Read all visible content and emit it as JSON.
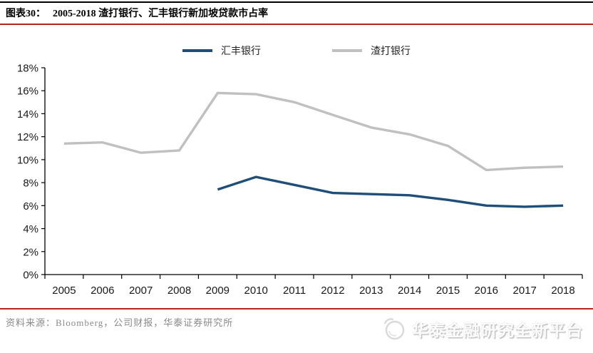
{
  "header": {
    "figure_label": "图表30：",
    "figure_title": "2005-2018 渣打银行、汇丰银行新加坡贷款市占率"
  },
  "legend": {
    "items": [
      {
        "label": "汇丰银行",
        "color": "#1F4E79"
      },
      {
        "label": "渣打银行",
        "color": "#C0C0C0"
      }
    ]
  },
  "chart_data": {
    "type": "line",
    "title": "2005-2018 渣打银行、汇丰银行新加坡贷款市占率",
    "categories": [
      "2005",
      "2006",
      "2007",
      "2008",
      "2009",
      "2010",
      "2011",
      "2012",
      "2013",
      "2014",
      "2015",
      "2016",
      "2017",
      "2018"
    ],
    "series": [
      {
        "name": "渣打银行",
        "color": "#C0C0C0",
        "values": [
          11.4,
          11.5,
          10.6,
          10.8,
          15.8,
          15.7,
          15.0,
          13.9,
          12.8,
          12.2,
          11.2,
          9.1,
          9.3,
          9.4
        ]
      },
      {
        "name": "汇丰银行",
        "color": "#1F4E79",
        "values": [
          null,
          null,
          null,
          null,
          7.4,
          8.5,
          7.8,
          7.1,
          7.0,
          6.9,
          6.5,
          6.0,
          5.9,
          6.0
        ]
      }
    ],
    "xlabel": "",
    "ylabel": "",
    "ylim": [
      0,
      18
    ],
    "y_tick_step": 2,
    "y_tick_suffix": "%",
    "grid": false,
    "legend_position": "top"
  },
  "footer": {
    "source_text": "资料来源：Bloomberg，公司财报，华泰证券研究所",
    "watermark_text": "华泰金融研究全新平台"
  },
  "colors": {
    "top_rule": "#000000",
    "accent_rule": "#B2241C",
    "axis": "#000000",
    "tick_label": "#1a1a1a",
    "source_text": "#8a8a8a"
  }
}
